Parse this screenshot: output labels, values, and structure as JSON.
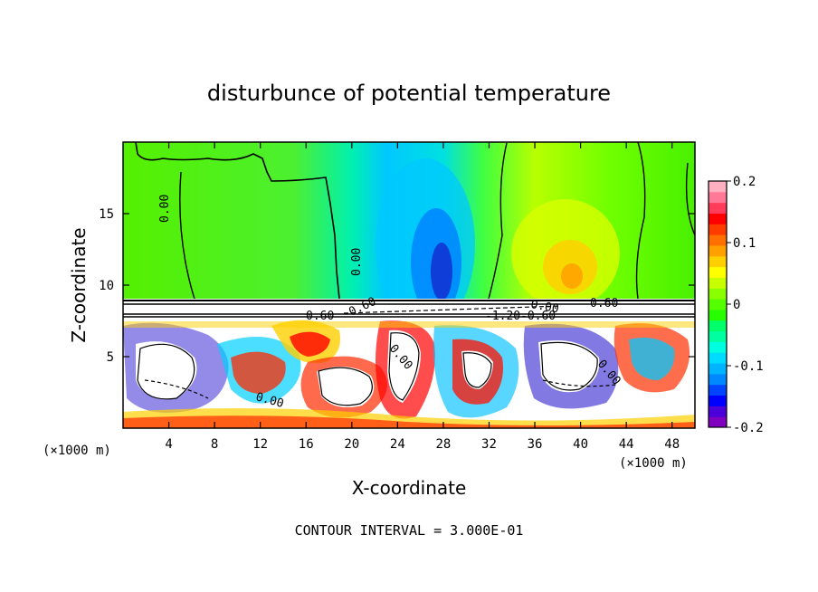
{
  "chart_data": {
    "type": "heatmap",
    "title": "disturbunce of potential temperature",
    "xlabel": "X-coordinate",
    "ylabel": "Z-coordinate",
    "x_unit_left": "(×1000 m)",
    "x_unit_right": "(×1000 m)",
    "xlim": [
      0,
      50
    ],
    "ylim": [
      0,
      20
    ],
    "x_ticks": [
      "4",
      "8",
      "12",
      "16",
      "20",
      "24",
      "28",
      "32",
      "36",
      "40",
      "44",
      "48"
    ],
    "x_tick_values": [
      4,
      8,
      12,
      16,
      20,
      24,
      28,
      32,
      36,
      40,
      44,
      48
    ],
    "y_ticks": [
      "5",
      "10",
      "15"
    ],
    "y_tick_values": [
      5,
      10,
      15
    ],
    "colorbar": {
      "range": [
        -0.2,
        0.2
      ],
      "tick_labels": [
        "0.2",
        "0.1",
        "0",
        "-0.1",
        "-0.2"
      ],
      "tick_values": [
        0.2,
        0.1,
        0,
        -0.1,
        -0.2
      ],
      "colors": [
        "#7f00bf",
        "#4b00d9",
        "#0000ff",
        "#0044ff",
        "#0088ff",
        "#00b4ff",
        "#00dcff",
        "#00ffe0",
        "#00ffa0",
        "#00ff6a",
        "#27ff00",
        "#55ff00",
        "#8aff00",
        "#c8ff00",
        "#ffff00",
        "#ffd000",
        "#ffa000",
        "#ff7000",
        "#ff3c00",
        "#ff0000",
        "#ff3c5a",
        "#ff7896",
        "#ffb0c0"
      ]
    },
    "regions": [
      {
        "x": [
          0,
          50
        ],
        "z": [
          9.1,
          20
        ],
        "value": 0.02
      },
      {
        "x": [
          21,
          31
        ],
        "z": [
          9.1,
          20
        ],
        "value": -0.08
      },
      {
        "x": [
          26.5,
          29
        ],
        "z": [
          10,
          14
        ],
        "value": -0.16
      },
      {
        "x": [
          33.5,
          44
        ],
        "z": [
          9.1,
          20
        ],
        "value": 0.06
      },
      {
        "x": [
          37,
          41
        ],
        "z": [
          10,
          13
        ],
        "value": 0.11
      },
      {
        "x": [
          0,
          50
        ],
        "z": [
          0,
          8
        ],
        "value": 0.0
      }
    ],
    "contour_labels": [
      "0.00",
      "0.00",
      "0.00",
      "0.00",
      "0.00",
      "0.00",
      "0.60",
      "0.60",
      "-1.20",
      "-0.60",
      "0.60"
    ],
    "annotation": "CONTOUR INTERVAL = 3.000E-01"
  }
}
